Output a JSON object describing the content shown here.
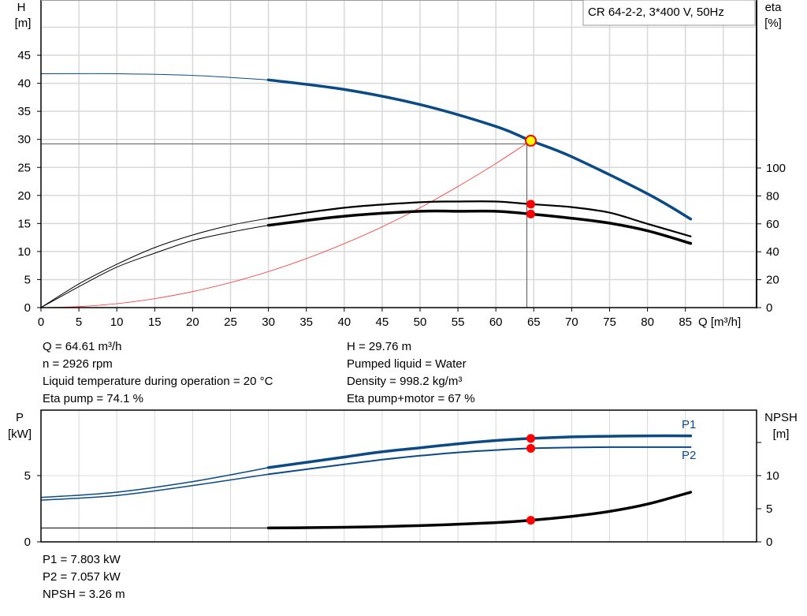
{
  "legend_box": "CR 64-2-2, 3*400 V, 50Hz",
  "colors": {
    "head": "#0b4a85",
    "efficiency": "#000000",
    "system": "#ff3030",
    "power": "#0b4a85",
    "npsh": "#000000",
    "duty_point": "#ff0000",
    "duty_point_head": "#ffff00",
    "grid": "#d8d8d8"
  },
  "info_top": {
    "left": [
      "Q = 64.61 m³/h",
      "n = 2926 rpm",
      "Liquid temperature during operation = 20 °C",
      "Eta pump = 74.1 %"
    ],
    "right": [
      "H = 29.76 m",
      "Pumped liquid = Water",
      "Density = 998.2 kg/m³",
      "Eta pump+motor = 67 %"
    ]
  },
  "info_bottom": [
    "P1 = 7.803 kW",
    "P2 = 7.057 kW",
    "NPSH = 3.26 m"
  ],
  "chart_data": [
    {
      "type": "line",
      "xlabel": "Q [m³/h]",
      "ylabel_left": [
        "H",
        "[m]"
      ],
      "ylabel_right": [
        "eta",
        "[%]"
      ],
      "xticks": [
        0,
        5,
        10,
        15,
        20,
        25,
        30,
        35,
        40,
        45,
        50,
        55,
        60,
        65,
        70,
        75,
        80,
        85
      ],
      "yticks_left": [
        0,
        5,
        10,
        15,
        20,
        25,
        30,
        35,
        40,
        45
      ],
      "yticks_right": [
        0,
        20,
        40,
        60,
        80,
        100
      ],
      "grid": true,
      "duty_point": {
        "Q": 64.61,
        "H": 29.76,
        "eta_pump": 74.1,
        "eta_pump_motor": 67
      },
      "series": [
        {
          "key": "H",
          "axis": "left",
          "x": [
            0,
            10,
            20,
            30,
            40,
            50,
            60,
            64.61,
            70,
            80,
            85.7
          ],
          "y": [
            41.7,
            41.7,
            41.4,
            40.6,
            38.9,
            36.2,
            32.3,
            29.76,
            26.9,
            20.3,
            15.8
          ]
        },
        {
          "key": "eta_pump",
          "axis": "right",
          "x": [
            0,
            5,
            10,
            15,
            20,
            25,
            30,
            40,
            50,
            55,
            60,
            64.61,
            70,
            75,
            80,
            85.7
          ],
          "y": [
            0,
            17,
            31,
            43,
            52,
            59,
            64,
            71.5,
            75.5,
            76,
            76,
            74.1,
            72,
            68,
            60,
            51
          ]
        },
        {
          "key": "eta_pump_motor",
          "axis": "right",
          "x": [
            0,
            5,
            10,
            15,
            20,
            25,
            30,
            40,
            50,
            55,
            60,
            64.61,
            70,
            75,
            80,
            85.7
          ],
          "y": [
            0,
            15,
            29,
            39,
            48,
            54,
            59,
            65.5,
            69,
            69,
            69,
            67,
            64,
            60.5,
            55,
            46
          ]
        },
        {
          "key": "system",
          "axis": "left",
          "x": [
            0,
            5,
            10,
            15,
            20,
            25,
            30,
            35,
            40,
            45,
            50,
            55,
            60,
            64.61
          ],
          "y": [
            0,
            0.18,
            0.71,
            1.6,
            2.85,
            4.46,
            6.42,
            8.73,
            11.4,
            14.4,
            17.8,
            21.6,
            25.7,
            29.76
          ]
        }
      ]
    },
    {
      "type": "line",
      "ylabel_left": [
        "P",
        "[kW]"
      ],
      "ylabel_right": [
        "NPSH",
        "[m]"
      ],
      "yticks_left": [
        0,
        5
      ],
      "yticks_right": [
        0,
        5,
        10,
        15
      ],
      "yticks_right_labels": [
        "0",
        "5",
        "10",
        ""
      ],
      "grid": true,
      "series": [
        {
          "key": "P1",
          "name": "P1",
          "axis": "left",
          "x": [
            0,
            10,
            20,
            30,
            40,
            45,
            50,
            55,
            60,
            64.61,
            70,
            75,
            80,
            85.7
          ],
          "y": [
            3.35,
            3.75,
            4.55,
            5.6,
            6.4,
            6.8,
            7.1,
            7.4,
            7.65,
            7.803,
            7.92,
            7.97,
            8.0,
            8.0
          ]
        },
        {
          "key": "P2",
          "name": "P2",
          "axis": "left",
          "x": [
            0,
            10,
            20,
            30,
            40,
            45,
            50,
            55,
            60,
            64.61,
            70,
            75,
            80,
            85.7
          ],
          "y": [
            3.15,
            3.5,
            4.25,
            5.1,
            5.85,
            6.2,
            6.5,
            6.75,
            6.93,
            7.057,
            7.12,
            7.15,
            7.15,
            7.15
          ]
        },
        {
          "key": "NPSH",
          "axis": "right",
          "x": [
            0,
            30,
            40,
            50,
            60,
            64.61,
            70,
            75,
            80,
            85.7
          ],
          "y": [
            2.1,
            2.1,
            2.2,
            2.45,
            2.9,
            3.26,
            3.85,
            4.6,
            5.7,
            7.5
          ]
        }
      ]
    }
  ]
}
